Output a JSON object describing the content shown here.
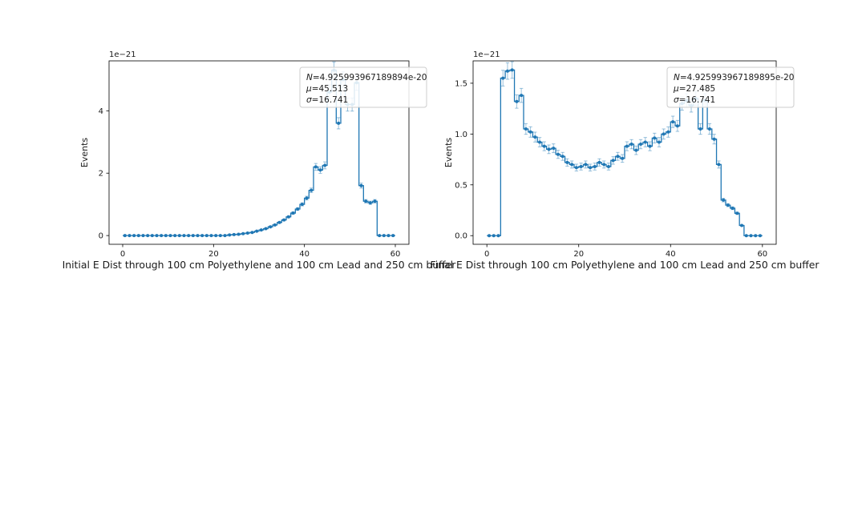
{
  "figure": {
    "offset_text": "1e−21",
    "ylabel": "Events",
    "accent_color": "#1f77b4",
    "axis_color": "#000000",
    "text_color": "#1a1a1a",
    "legend_border_color": "#cccccc"
  },
  "chart_data": [
    {
      "type": "bar",
      "style": "step-histogram-with-markers",
      "title": "Initial E Dist through 100 cm Polyethylene and 100 cm Lead and 250 cm buffer",
      "ylabel": "Events",
      "offset_text": "1e−21",
      "value_scale": "1e-21",
      "x_start": 0.5,
      "bin_width": 1,
      "xlim": [
        -3,
        63
      ],
      "ylim": [
        -0.28,
        5.6
      ],
      "xticks": [
        0,
        20,
        40,
        60
      ],
      "xtick_labels": [
        "0",
        "20",
        "40",
        "60"
      ],
      "yticks": [
        0,
        2,
        4
      ],
      "ytick_labels": [
        "0",
        "2",
        "4"
      ],
      "legend": {
        "n": "N=4.925993967189894e-20",
        "mu": "μ=45.513",
        "sigma": "σ=16.741"
      },
      "line_color": "#1f77b4",
      "values": [
        0,
        0,
        0,
        0,
        0,
        0,
        0,
        0,
        0,
        0,
        0,
        0,
        0,
        0,
        0,
        0,
        0,
        0,
        0,
        0,
        0,
        0,
        0,
        0.02,
        0.03,
        0.04,
        0.06,
        0.08,
        0.1,
        0.14,
        0.18,
        0.22,
        0.28,
        0.34,
        0.42,
        0.5,
        0.6,
        0.72,
        0.85,
        1.0,
        1.2,
        1.45,
        2.2,
        2.1,
        2.25,
        4.6,
        5.3,
        3.6,
        5.0,
        4.2,
        4.2,
        4.9,
        1.6,
        1.1,
        1.05,
        1.1,
        0,
        0,
        0,
        0
      ]
    },
    {
      "type": "bar",
      "style": "step-histogram-with-markers",
      "title": "Final E Dist through 100 cm Polyethylene and 100 cm Lead and 250 cm buffer",
      "ylabel": "Events",
      "offset_text": "1e−21",
      "value_scale": "1e-21",
      "x_start": 0.5,
      "bin_width": 1,
      "xlim": [
        -3,
        63
      ],
      "ylim": [
        -0.085,
        1.72
      ],
      "xticks": [
        0,
        20,
        40,
        60
      ],
      "xtick_labels": [
        "0",
        "20",
        "40",
        "60"
      ],
      "yticks": [
        0,
        0.5,
        1.0,
        1.5
      ],
      "ytick_labels": [
        "0.0",
        "0.5",
        "1.0",
        "1.5"
      ],
      "legend": {
        "n": "N=4.925993967189895e-20",
        "mu": "μ=27.485",
        "sigma": "σ=16.741"
      },
      "line_color": "#1f77b4",
      "values": [
        0,
        0,
        0,
        1.55,
        1.62,
        1.63,
        1.32,
        1.38,
        1.05,
        1.02,
        0.97,
        0.92,
        0.88,
        0.85,
        0.86,
        0.8,
        0.78,
        0.72,
        0.7,
        0.67,
        0.68,
        0.7,
        0.67,
        0.68,
        0.72,
        0.7,
        0.68,
        0.74,
        0.78,
        0.76,
        0.88,
        0.9,
        0.84,
        0.9,
        0.92,
        0.88,
        0.96,
        0.92,
        1.0,
        1.02,
        1.12,
        1.08,
        1.3,
        1.33,
        1.28,
        1.35,
        1.05,
        1.33,
        1.05,
        0.95,
        0.7,
        0.35,
        0.3,
        0.27,
        0.22,
        0.1,
        0,
        0,
        0,
        0
      ]
    }
  ]
}
